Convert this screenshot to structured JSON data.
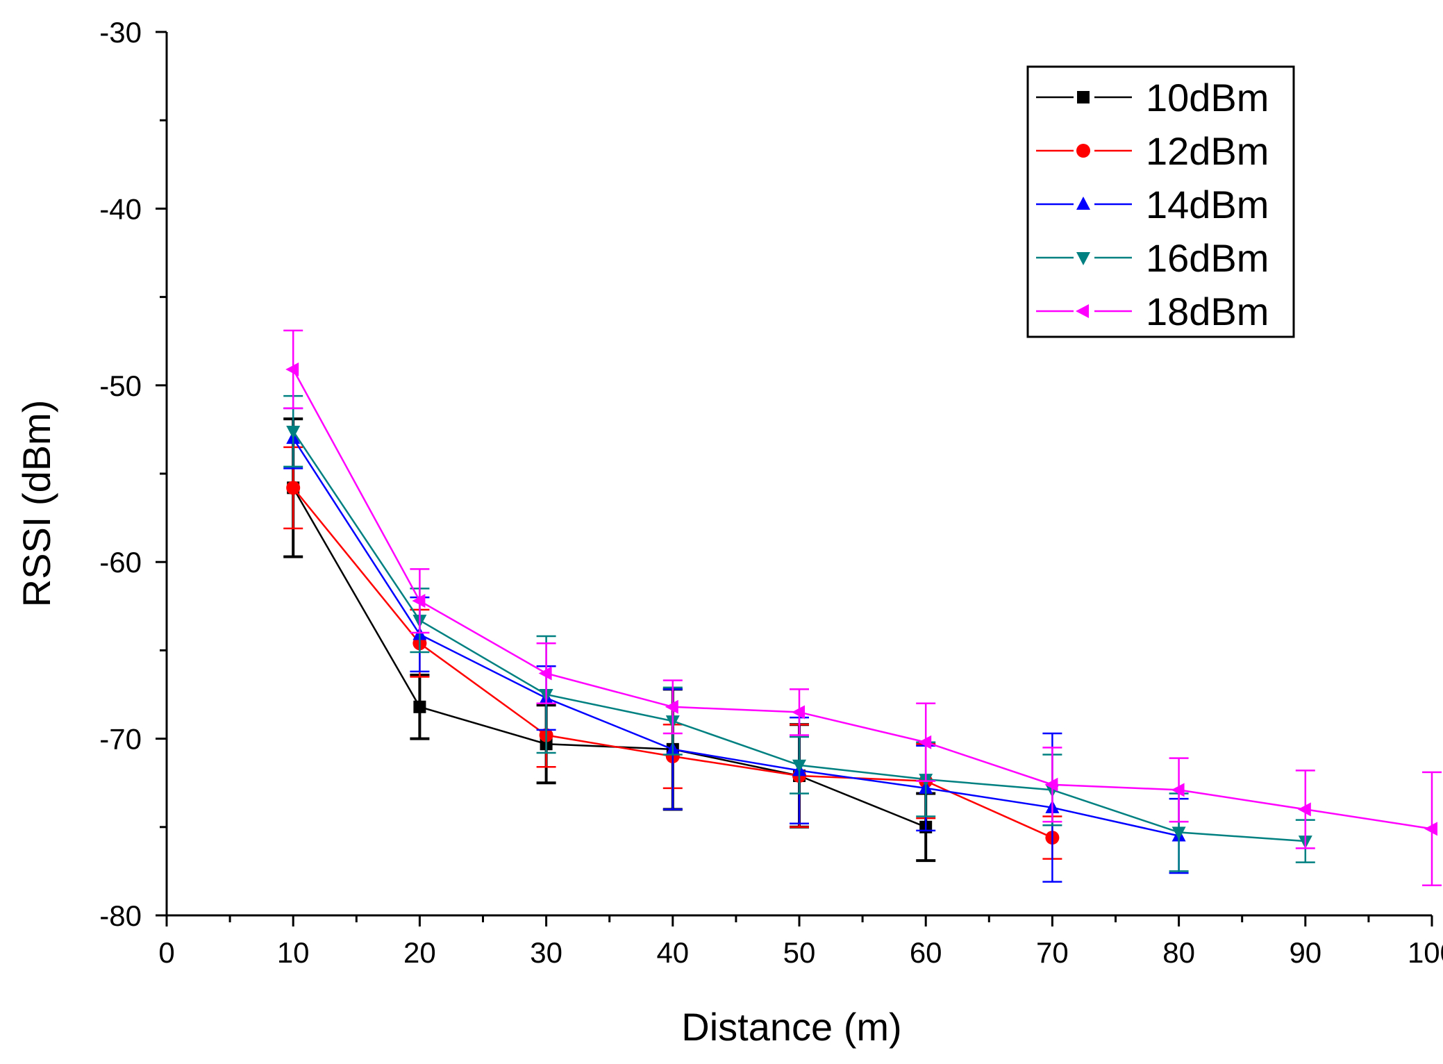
{
  "chart_data": {
    "type": "line",
    "title": "",
    "xlabel": "Distance (m)",
    "ylabel": "RSSI (dBm)",
    "xlim": [
      0,
      100
    ],
    "ylim": [
      -80,
      -30
    ],
    "x_ticks": [
      "0",
      "10",
      "20",
      "30",
      "40",
      "50",
      "60",
      "70",
      "80",
      "90",
      "100"
    ],
    "y_ticks": [
      "-30",
      "-40",
      "-50",
      "-60",
      "-70",
      "-80"
    ],
    "x_minor_step": 5,
    "y_minor_step": 5,
    "grid": false,
    "legend_position": "top-right",
    "series": [
      {
        "name": "10dBm",
        "color": "#000000",
        "marker": "square",
        "x": [
          10,
          20,
          30,
          40,
          50,
          60
        ],
        "y": [
          -55.8,
          -68.2,
          -70.3,
          -70.6,
          -72.1,
          -75.0
        ],
        "err": [
          3.9,
          1.8,
          2.2,
          3.4,
          2.9,
          1.9
        ]
      },
      {
        "name": "12dBm",
        "color": "#ff0000",
        "marker": "circle",
        "x": [
          10,
          20,
          30,
          40,
          50,
          60,
          70
        ],
        "y": [
          -55.8,
          -64.6,
          -69.8,
          -71.0,
          -72.1,
          -72.4,
          -75.6
        ],
        "err": [
          2.3,
          1.9,
          1.8,
          1.8,
          2.9,
          2.1,
          1.2
        ]
      },
      {
        "name": "14dBm",
        "color": "#0000ff",
        "marker": "triangle-up",
        "x": [
          10,
          20,
          30,
          40,
          50,
          60,
          70,
          80
        ],
        "y": [
          -53.0,
          -64.1,
          -67.7,
          -70.6,
          -71.8,
          -72.8,
          -73.9,
          -75.5
        ],
        "err": [
          1.7,
          2.1,
          1.8,
          3.4,
          3.0,
          2.4,
          4.2,
          2.1
        ]
      },
      {
        "name": "16dBm",
        "color": "#008080",
        "marker": "triangle-down",
        "x": [
          10,
          20,
          30,
          40,
          50,
          60,
          70,
          80,
          90
        ],
        "y": [
          -52.6,
          -63.3,
          -67.5,
          -69.0,
          -71.5,
          -72.3,
          -72.9,
          -75.3,
          -75.8
        ],
        "err": [
          2.0,
          1.8,
          3.3,
          1.9,
          1.6,
          2.1,
          2.0,
          2.2,
          1.2
        ]
      },
      {
        "name": "18dBm",
        "color": "#ff00ff",
        "marker": "triangle-left",
        "x": [
          10,
          20,
          30,
          40,
          50,
          60,
          70,
          80,
          90,
          100
        ],
        "y": [
          -49.1,
          -62.2,
          -66.3,
          -68.2,
          -68.5,
          -70.2,
          -72.6,
          -72.9,
          -74.0,
          -75.1
        ],
        "err": [
          2.2,
          1.8,
          1.7,
          1.5,
          1.3,
          2.2,
          2.1,
          1.8,
          2.2,
          3.2
        ]
      }
    ]
  }
}
